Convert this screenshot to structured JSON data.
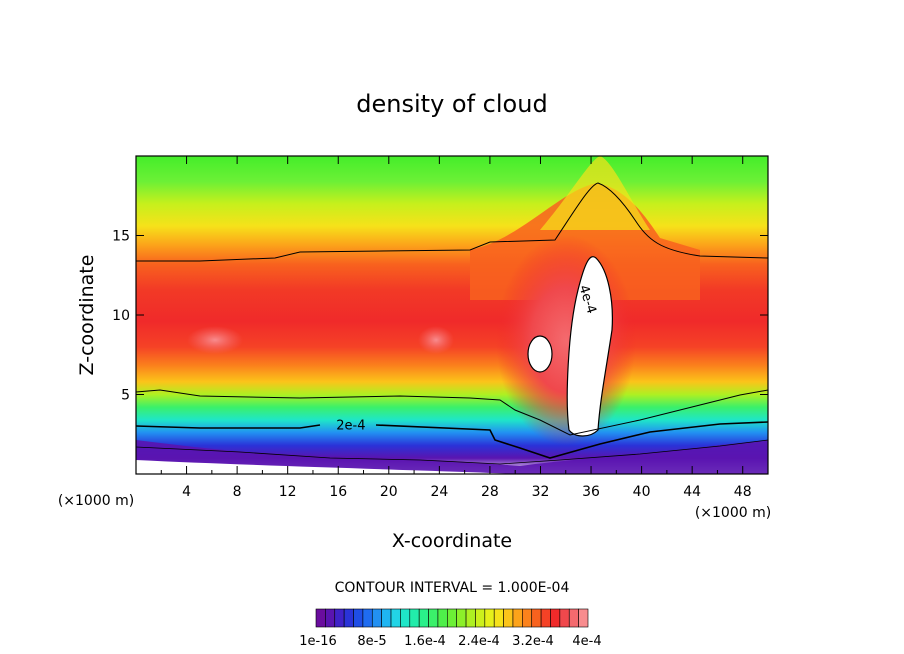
{
  "chart_data": {
    "type": "heatmap",
    "title": "density of cloud",
    "xlabel": "X-coordinate",
    "ylabel": "Z-coordinate",
    "x_unit_left": "(×1000 m)",
    "x_unit_right": "(×1000 m)",
    "xlim": [
      0,
      50
    ],
    "ylim": [
      0,
      20
    ],
    "x_ticks": [
      4,
      8,
      12,
      16,
      20,
      24,
      28,
      32,
      36,
      40,
      44,
      48
    ],
    "y_ticks": [
      5,
      10,
      15
    ],
    "contour_interval_text": "CONTOUR INTERVAL = 1.000E-04",
    "contour_labels": [
      {
        "text": "2e-4",
        "x": 17,
        "z": 3.1
      },
      {
        "text": "4e-4",
        "x": 35.8,
        "z": 11.0
      }
    ],
    "colorbar": {
      "colors": [
        "#6a0d9e",
        "#5a14b0",
        "#3f22c8",
        "#2a33d8",
        "#1f4ee6",
        "#1f6cf0",
        "#2290f2",
        "#1fb5f2",
        "#22d4e6",
        "#1fe6c8",
        "#22ecaa",
        "#2af08a",
        "#3bf06a",
        "#4fef4a",
        "#6cf036",
        "#8cf02a",
        "#aef022",
        "#ccf01c",
        "#e6f01a",
        "#f6e21a",
        "#fbc41a",
        "#fca31a",
        "#fb821c",
        "#f8621e",
        "#f54226",
        "#f02a2a",
        "#f0484c",
        "#f46a6e",
        "#f88c8e"
      ],
      "labels": [
        "1e-16",
        "8e-5",
        "1.6e-4",
        "2.4e-4",
        "3.2e-4",
        "4e-4"
      ]
    }
  }
}
